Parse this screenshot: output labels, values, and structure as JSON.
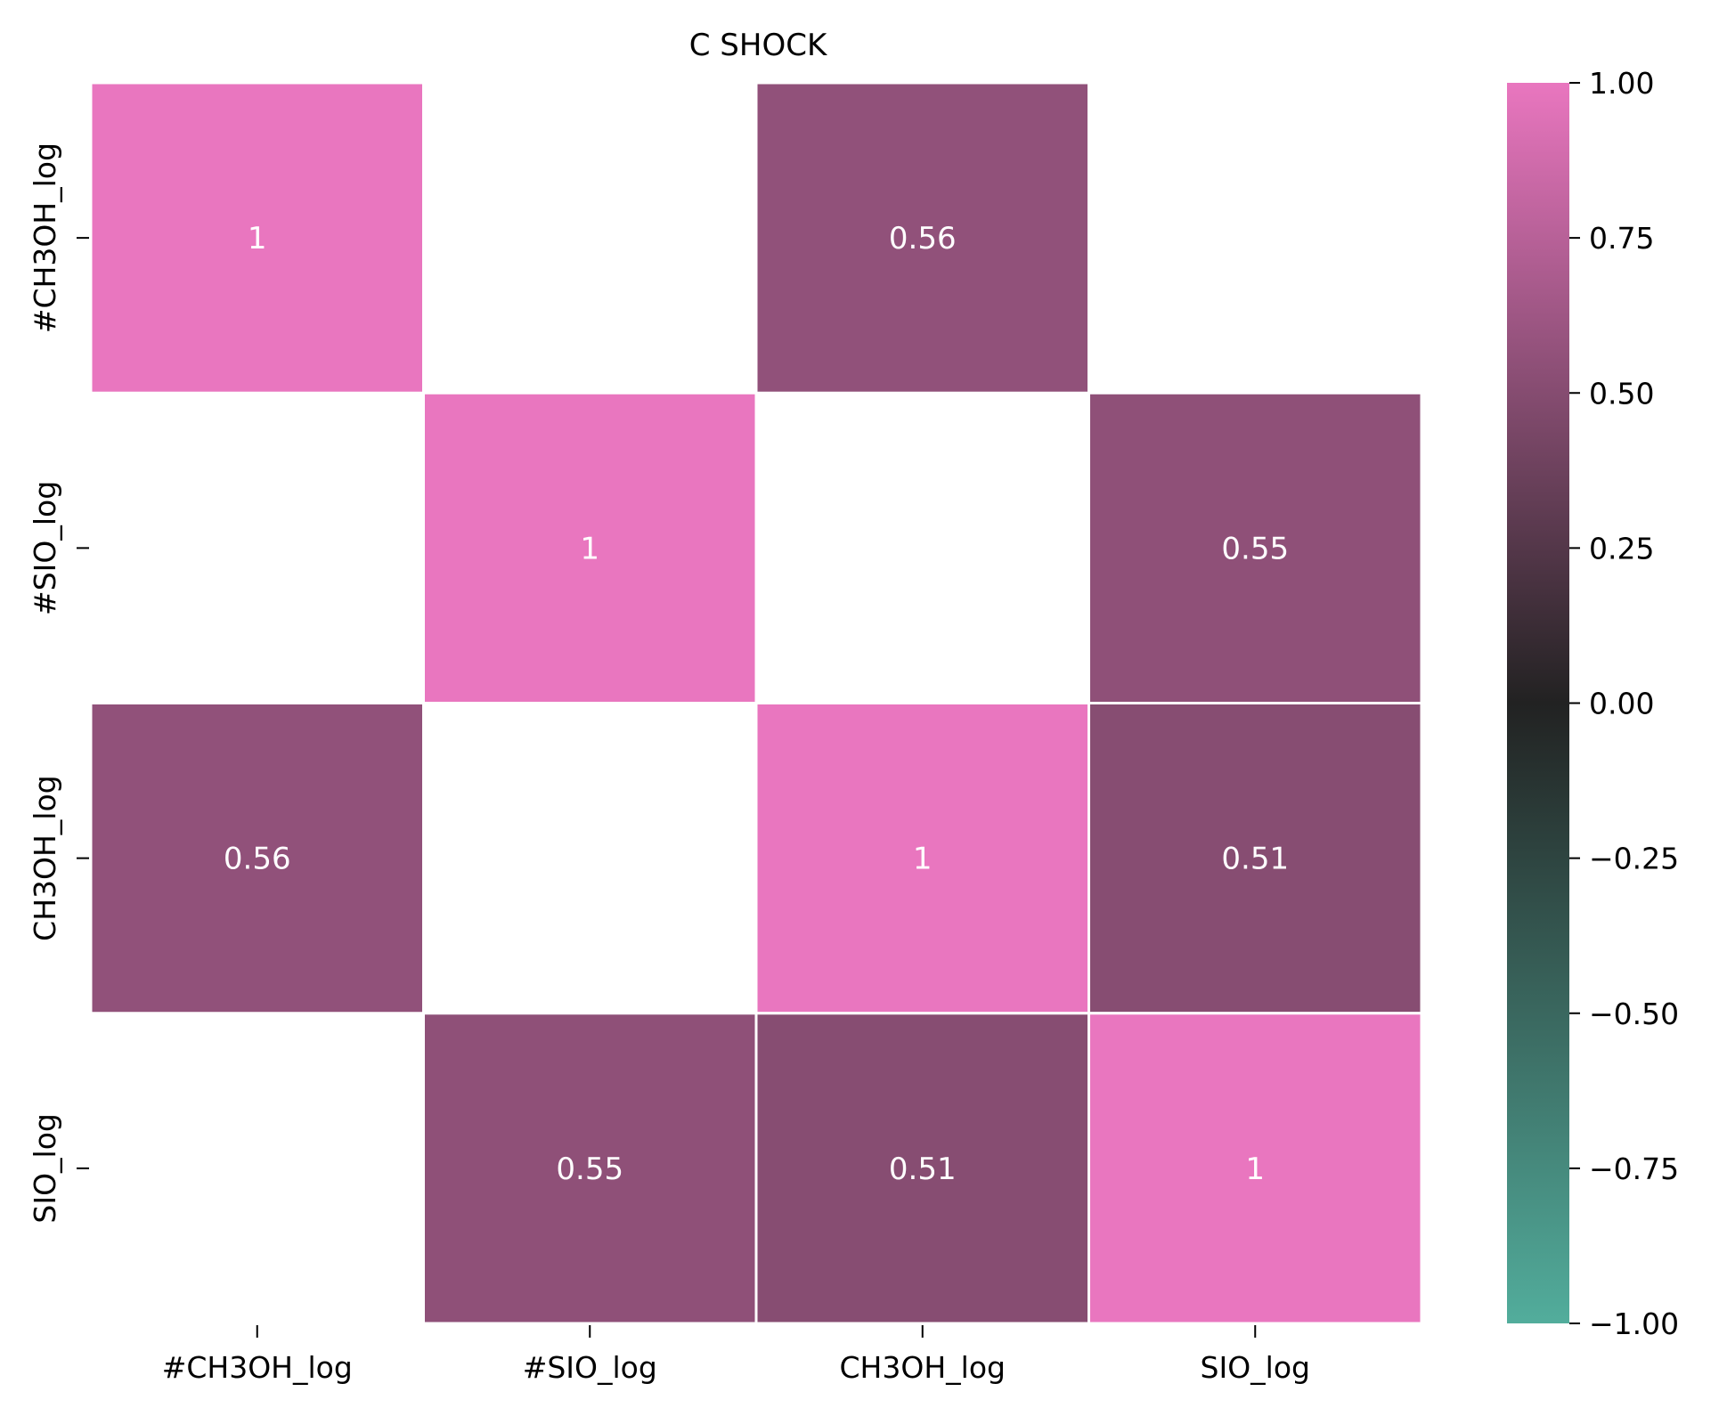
{
  "chart_data": {
    "type": "heatmap",
    "title": "C SHOCK",
    "rows": [
      "#CH3OH_log",
      "#SIO_log",
      "CH3OH_log",
      "SIO_log"
    ],
    "columns": [
      "#CH3OH_log",
      "#SIO_log",
      "CH3OH_log",
      "SIO_log"
    ],
    "values": [
      [
        1,
        null,
        0.56,
        null
      ],
      [
        null,
        1,
        null,
        0.55
      ],
      [
        0.56,
        null,
        1,
        0.51
      ],
      [
        null,
        0.55,
        0.51,
        1
      ]
    ],
    "cell_labels": [
      [
        "1",
        "",
        "0.56",
        ""
      ],
      [
        "",
        "1",
        "",
        "0.55"
      ],
      [
        "0.56",
        "",
        "1",
        "0.51"
      ],
      [
        "",
        "0.55",
        "0.51",
        "1"
      ]
    ],
    "colorbar": {
      "range": [
        -1.0,
        1.0
      ],
      "ticks": [
        1.0,
        0.75,
        0.5,
        0.25,
        0.0,
        -0.25,
        -0.5,
        -0.75,
        -1.0
      ],
      "tick_labels": [
        "1.00",
        "0.75",
        "0.50",
        "0.25",
        "0.00",
        "−0.25",
        "−0.50",
        "−0.75",
        "−1.00"
      ],
      "colors": {
        "low": "#52ad9c",
        "mid": "#222222",
        "high": "#e976bf"
      }
    },
    "annotation_color": "#ffffff",
    "grid_line_color": "#ffffff"
  }
}
